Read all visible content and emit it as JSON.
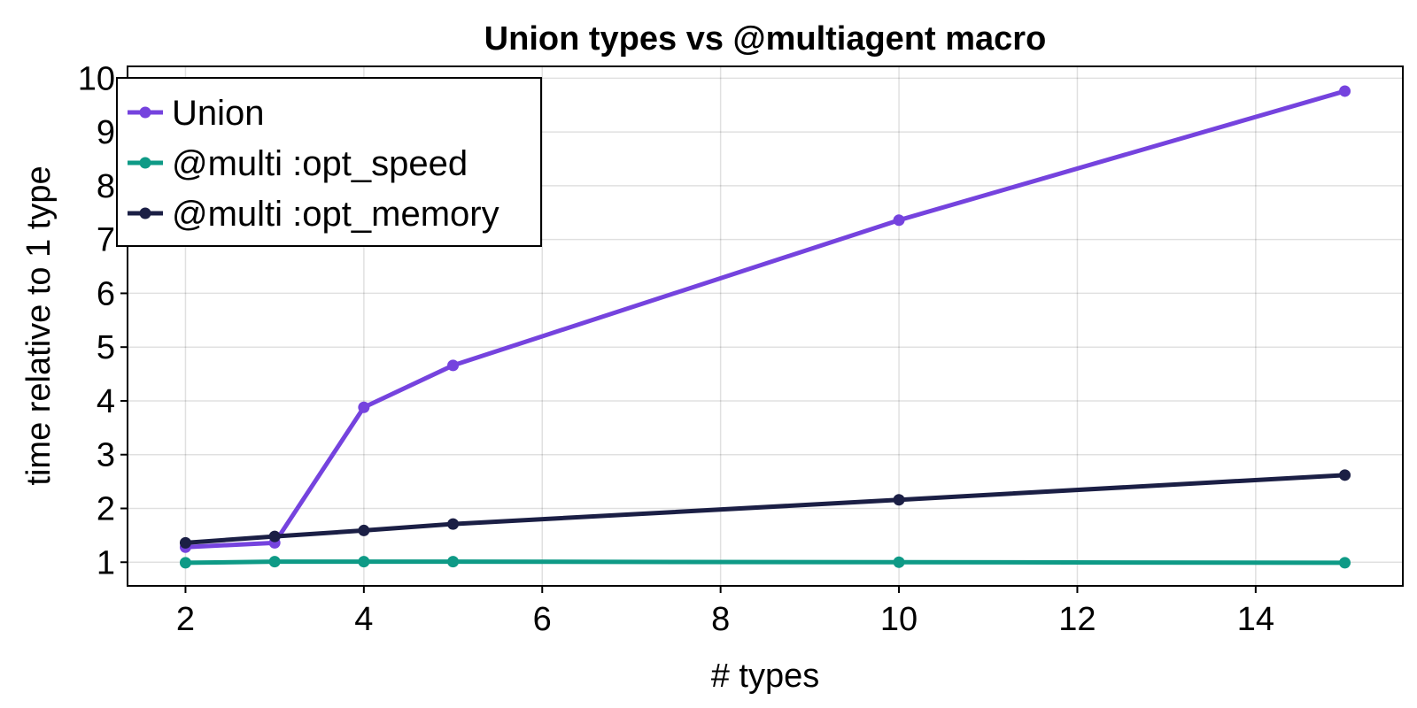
{
  "chart_data": {
    "type": "line",
    "title": "Union types vs @multiagent macro",
    "xlabel": "# types",
    "ylabel": "time relative to 1 type",
    "x": [
      2,
      3,
      4,
      5,
      10,
      15
    ],
    "xlim": [
      1.35,
      15.65
    ],
    "ylim": [
      0.56,
      10.22
    ],
    "xticks": [
      2,
      4,
      6,
      8,
      10,
      12,
      14
    ],
    "yticks": [
      1,
      2,
      3,
      4,
      5,
      6,
      7,
      8,
      9,
      10
    ],
    "grid": true,
    "legend_position": "top-left",
    "series": [
      {
        "name": "Union",
        "color": "#7543de",
        "values": [
          1.28,
          1.36,
          3.88,
          4.66,
          7.36,
          9.76
        ]
      },
      {
        "name": "@multi :opt_speed",
        "color": "#0e9a86",
        "values": [
          0.99,
          1.01,
          1.01,
          1.01,
          1.0,
          0.99
        ]
      },
      {
        "name": "@multi :opt_memory",
        "color": "#1b1f45",
        "values": [
          1.36,
          1.48,
          1.59,
          1.71,
          2.16,
          2.62
        ]
      }
    ]
  }
}
